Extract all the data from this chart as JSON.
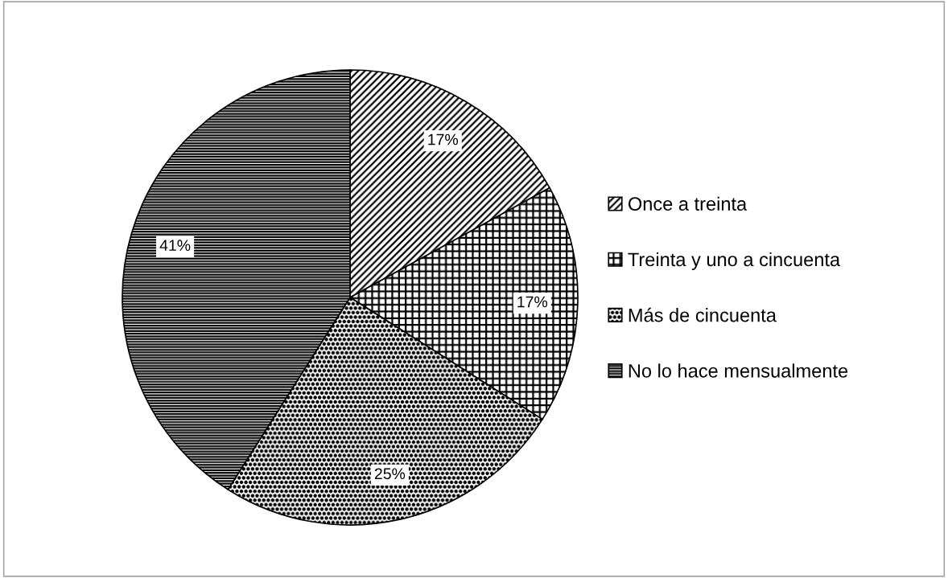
{
  "chart_data": {
    "type": "pie",
    "categories": [
      "Once a treinta",
      "Treinta y uno a cincuenta",
      "Más de cincuenta",
      "No lo hace mensualmente"
    ],
    "values": [
      17,
      17,
      25,
      41
    ],
    "value_labels": [
      "17%",
      "17%",
      "25%",
      "41%"
    ],
    "colors": [
      "#000000",
      "#000000",
      "#000000",
      "#000000"
    ],
    "legend": "right"
  }
}
